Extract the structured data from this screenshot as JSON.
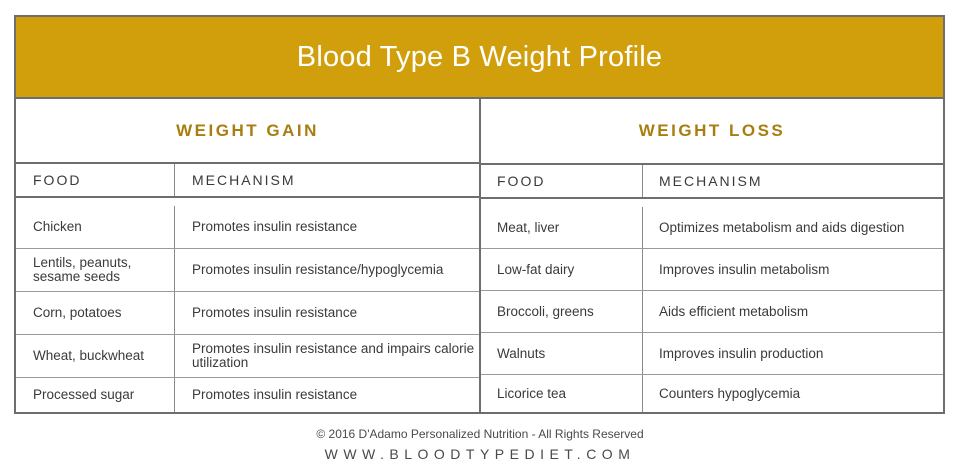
{
  "title": "Blood Type B Weight Profile",
  "weight_gain": {
    "heading": "WEIGHT GAIN",
    "col_food": "FOOD",
    "col_mechanism": "MECHANISM",
    "rows": [
      {
        "food": "Chicken",
        "mechanism": "Promotes insulin resistance"
      },
      {
        "food": "Lentils, peanuts, sesame seeds",
        "mechanism": "Promotes insulin resistance/hypoglycemia"
      },
      {
        "food": "Corn, potatoes",
        "mechanism": "Promotes insulin resistance"
      },
      {
        "food": "Wheat, buckwheat",
        "mechanism": "Promotes insulin resistance and impairs calorie utilization"
      },
      {
        "food": "Processed sugar",
        "mechanism": "Promotes insulin resistance"
      }
    ]
  },
  "weight_loss": {
    "heading": "WEIGHT LOSS",
    "col_food": "FOOD",
    "col_mechanism": "MECHANISM",
    "rows": [
      {
        "food": "Meat, liver",
        "mechanism": "Optimizes metabolism and aids digestion"
      },
      {
        "food": "Low-fat dairy",
        "mechanism": "Improves insulin metabolism"
      },
      {
        "food": "Broccoli, greens",
        "mechanism": "Aids efficient metabolism"
      },
      {
        "food": "Walnuts",
        "mechanism": "Improves insulin production"
      },
      {
        "food": "Licorice tea",
        "mechanism": "Counters hypoglycemia"
      }
    ]
  },
  "footer": {
    "copyright": "© 2016 D'Adamo Personalized Nutrition - All Rights Reserved",
    "website": "WWW.BLOODTYPEDIET.COM"
  },
  "colors": {
    "title_bar": "#d29f0c",
    "section_heading": "#a87e10",
    "border": "#6e6e6e"
  }
}
